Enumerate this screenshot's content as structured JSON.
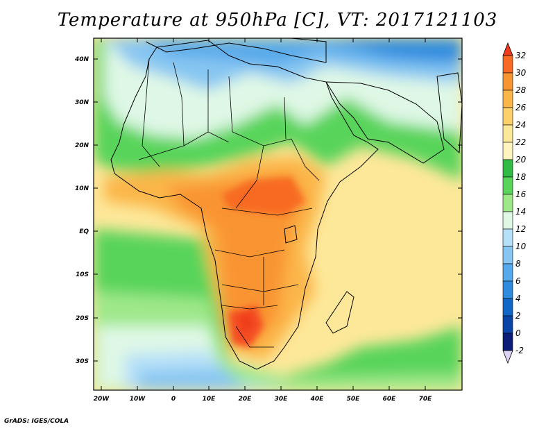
{
  "title": "Temperature at 950hPa [C], VT: 2017121103",
  "credit": "GrADS: IGES/COLA",
  "map": {
    "lat_labels": [
      "40N",
      "30N",
      "20N",
      "10N",
      "EQ",
      "10S",
      "20S",
      "30S"
    ],
    "lon_labels": [
      "20W",
      "10W",
      "0",
      "10E",
      "20E",
      "30E",
      "40E",
      "50E",
      "60E",
      "70E"
    ]
  },
  "colorbar": {
    "levels": [
      "32",
      "30",
      "28",
      "26",
      "24",
      "22",
      "20",
      "18",
      "16",
      "14",
      "12",
      "10",
      "8",
      "6",
      "4",
      "2",
      "0",
      "-2"
    ],
    "colors": [
      "#f03a1e",
      "#f86a24",
      "#f99432",
      "#fbb648",
      "#fdd06a",
      "#fde89a",
      "#fff4c0",
      "#2fbb44",
      "#59d45a",
      "#9ee88a",
      "#dff8e6",
      "#b6e0f8",
      "#87c6f2",
      "#56a9ea",
      "#2e8bde",
      "#1166c8",
      "#0b44a8",
      "#0a1d78",
      "#dcd2f4"
    ]
  },
  "legend_colors": {
    "ocean_sw": "#7ec1f0",
    "sahara": "#d6f2ec",
    "north": "#6ab0ea",
    "central_hot": "#fbb648",
    "hot_core": "#f44e22"
  }
}
